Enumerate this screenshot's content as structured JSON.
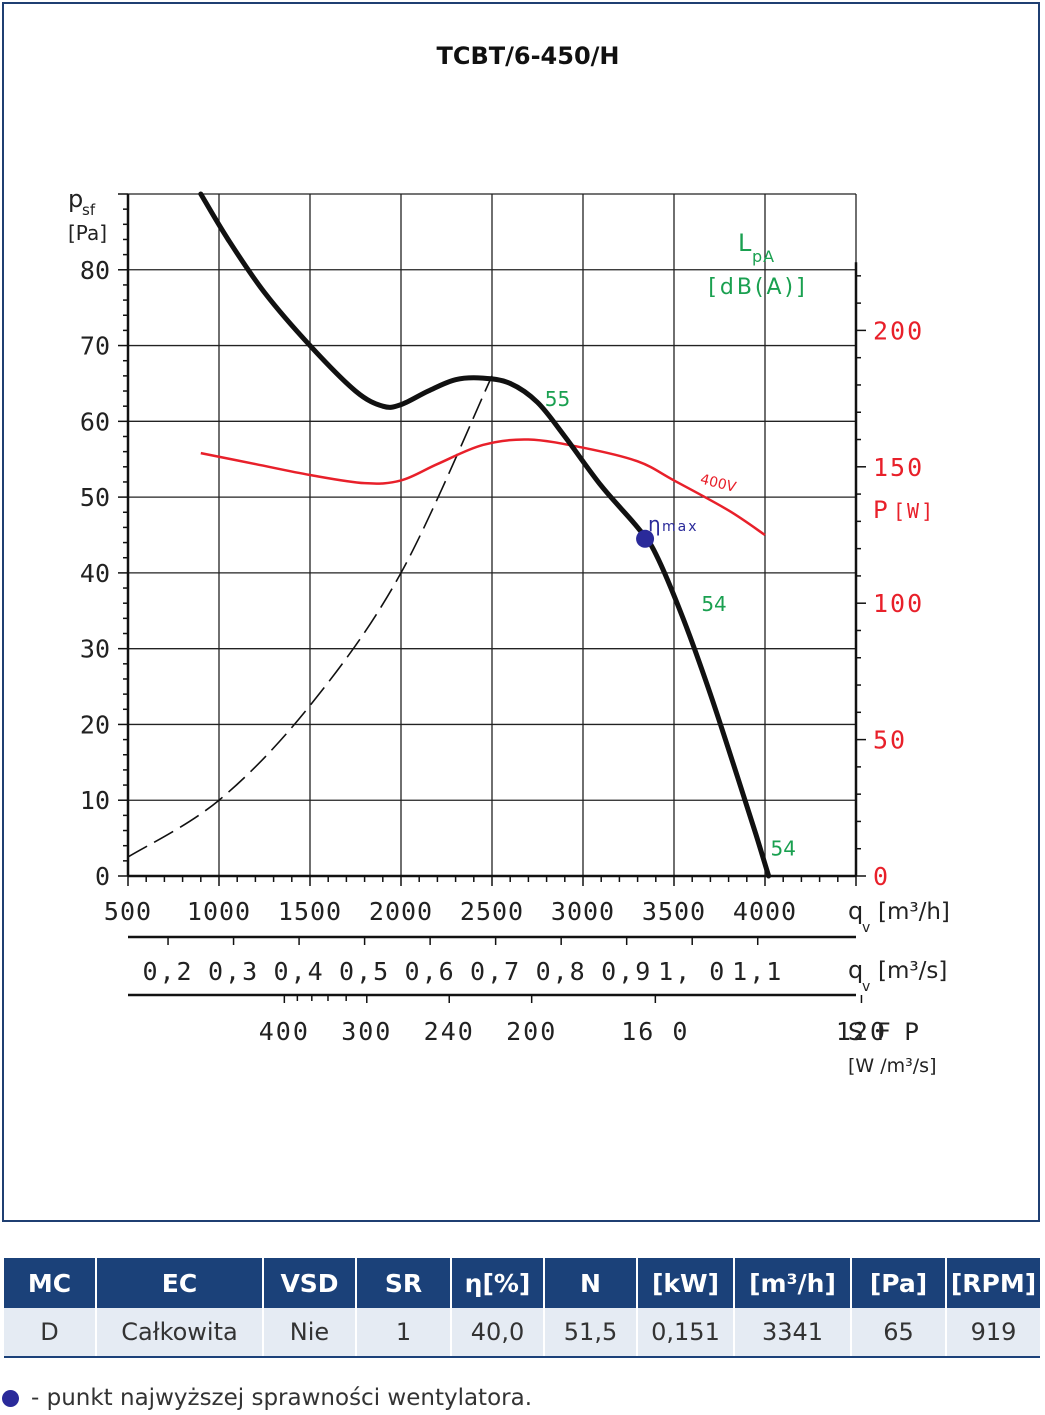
{
  "chart_data": {
    "type": "line",
    "title": "TCBT/6-450/H",
    "x_axis": {
      "label": "q",
      "label_sub": "v",
      "unit": "[m³/h]",
      "range": [
        500,
        4500
      ],
      "ticks": [
        "500",
        "1000",
        "1500",
        "2000",
        "2500",
        "3000",
        "3500",
        "4000"
      ]
    },
    "x_axis_secondary": {
      "label": "q",
      "label_sub": "v",
      "unit": "[m³/s]",
      "ticks": [
        {
          "label": "0,2",
          "value": 0.2
        },
        {
          "label": "0,3",
          "value": 0.3
        },
        {
          "label": "0,4",
          "value": 0.4
        },
        {
          "label": "0,5",
          "value": 0.5
        },
        {
          "label": "0,6",
          "value": 0.6
        },
        {
          "label": "0,7",
          "value": 0.7
        },
        {
          "label": "0,8",
          "value": 0.8
        },
        {
          "label": "0,9",
          "value": 0.9
        },
        {
          "label": "1, 0",
          "value": 1.0
        },
        {
          "label": "1,1",
          "value": 1.1
        }
      ]
    },
    "sfp_axis": {
      "label": "S F P",
      "unit": "[W /m³/s]",
      "ticks": [
        {
          "label": "400",
          "value": 400
        },
        {
          "label": "300",
          "value": 300
        },
        {
          "label": "240",
          "value": 240
        },
        {
          "label": "200",
          "value": 200
        },
        {
          "label": "16 0",
          "value": 160
        },
        {
          "label": "120",
          "value": 120
        }
      ],
      "minor_ticks": [
        380,
        360,
        340,
        320
      ]
    },
    "y_axis_left": {
      "label": "p",
      "label_sub": "sf",
      "unit": "[Pa]",
      "range": [
        0,
        90
      ],
      "ticks": [
        "0",
        "10",
        "20",
        "30",
        "40",
        "50",
        "60",
        "70",
        "80"
      ]
    },
    "y_axis_right": {
      "label": "P",
      "unit": "[W]",
      "range": [
        0,
        250
      ],
      "ticks": [
        "0",
        "50",
        "100",
        "150",
        "200"
      ],
      "color": "#e8202a"
    },
    "series": [
      {
        "role": "pressure",
        "color": "#111111",
        "x": [
          900,
          1050,
          1250,
          1500,
          1750,
          1900,
          2000,
          2150,
          2300,
          2450,
          2600,
          2750,
          2900,
          3100,
          3300,
          3400,
          3550,
          3700,
          3850,
          3950,
          4020
        ],
        "y": [
          90,
          84,
          77,
          70,
          64,
          62,
          62.2,
          64,
          65.5,
          65.7,
          65,
          62.5,
          58,
          51.5,
          46,
          42.5,
          34,
          24,
          13,
          5.5,
          0
        ]
      },
      {
        "role": "power",
        "name": "400V",
        "color": "#e8202a",
        "x": [
          900,
          1200,
          1500,
          1800,
          2000,
          2200,
          2450,
          2700,
          3000,
          3300,
          3500,
          3800,
          4000
        ],
        "y": [
          155,
          151,
          147,
          144,
          145,
          151,
          158,
          160,
          157,
          152,
          145,
          134,
          125
        ]
      },
      {
        "role": "system",
        "style": "dashed",
        "color": "#111111",
        "x": [
          500,
          1000,
          1500,
          2000,
          2500
        ],
        "y": [
          2.5,
          10,
          22.5,
          40,
          66
        ]
      }
    ],
    "annotations": {
      "noise_title": "L",
      "noise_sub": "pA",
      "noise_unit": "[dB(A)]",
      "noise_labels": [
        {
          "text": "55",
          "x": 2860,
          "y": 62
        },
        {
          "text": "54",
          "x": 3720,
          "y": 35
        },
        {
          "text": "54",
          "x": 4100,
          "y": 2.7
        }
      ],
      "eta_label": "η",
      "eta_sub": "max",
      "eta_point": {
        "x": 3341,
        "y": 44.5
      },
      "voltage_label": "400V",
      "colors": {
        "noise": "#1aa050",
        "eta": "#2a2a9a"
      }
    },
    "grid": true
  },
  "table": {
    "headers": [
      "MC",
      "EC",
      "VSD",
      "SR",
      "η[%]",
      "N",
      "[kW]",
      "[m³/h]",
      "[Pa]",
      "[RPM]"
    ],
    "row": [
      "D",
      "Całkowita",
      "Nie",
      "1",
      "40,0",
      "51,5",
      "0,151",
      "3341",
      "65",
      "919"
    ],
    "header_color": "#1b4179"
  },
  "footnote": "- punkt najwyższej sprawności wentylatora."
}
